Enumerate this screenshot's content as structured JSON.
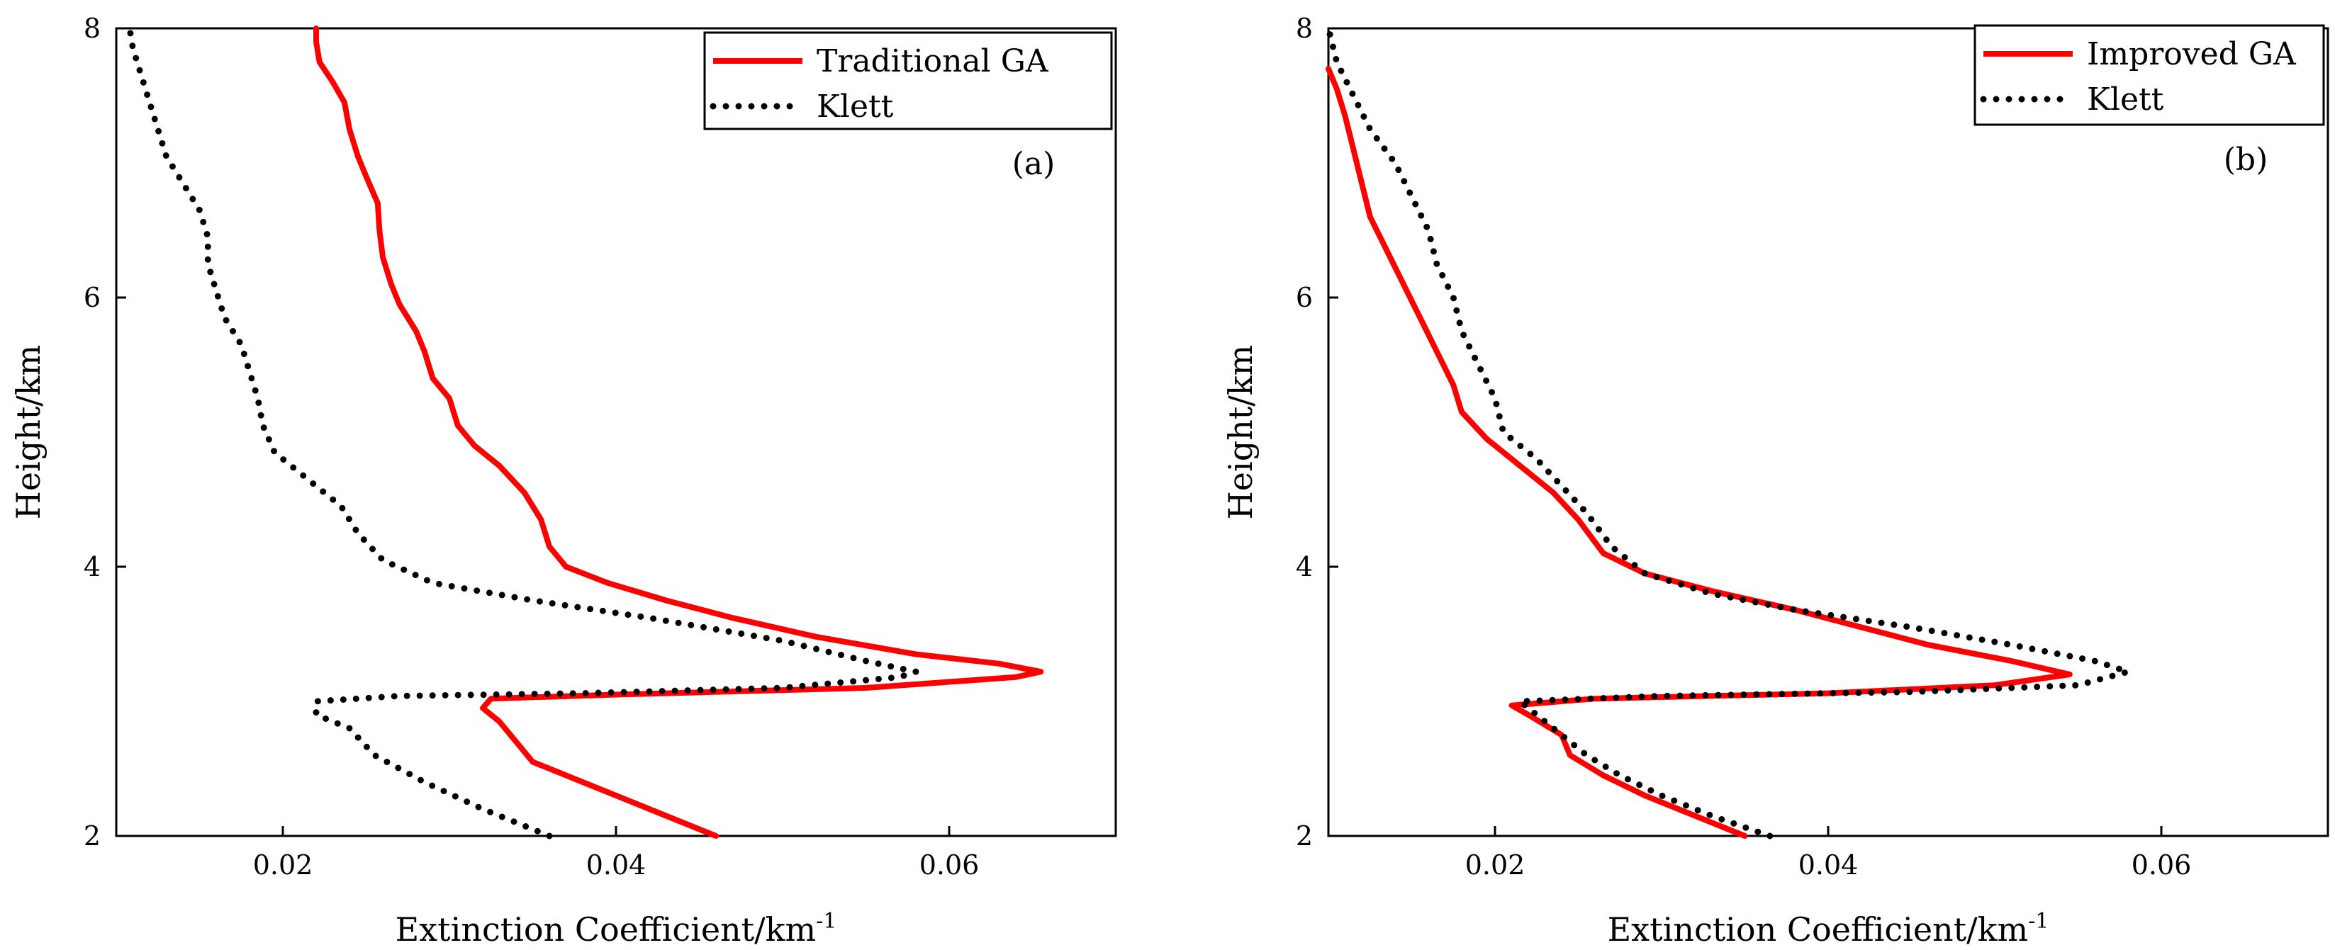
{
  "chart_data": [
    {
      "type": "line",
      "panel_label": "(a)",
      "xlabel": "Extinction Coefficient/km",
      "xlabel_superscript": "-1",
      "ylabel": "Height/km",
      "xlim": [
        0.01,
        0.07
      ],
      "ylim": [
        2,
        8
      ],
      "xticks": [
        0.02,
        0.04,
        0.06
      ],
      "xtick_labels": [
        "0.02",
        "0.04",
        "0.06"
      ],
      "yticks": [
        2,
        4,
        6,
        8
      ],
      "ytick_labels": [
        "2",
        "4",
        "6",
        "8"
      ],
      "legend_position": "top-right",
      "series": [
        {
          "name": "Traditional GA",
          "style": "solid",
          "color": "#ff0000",
          "points": [
            [
              0.046,
              2.0
            ],
            [
              0.042,
              2.2
            ],
            [
              0.038,
              2.4
            ],
            [
              0.035,
              2.55
            ],
            [
              0.034,
              2.7
            ],
            [
              0.033,
              2.85
            ],
            [
              0.032,
              2.95
            ],
            [
              0.0325,
              3.02
            ],
            [
              0.04,
              3.05
            ],
            [
              0.055,
              3.1
            ],
            [
              0.064,
              3.18
            ],
            [
              0.0655,
              3.22
            ],
            [
              0.063,
              3.28
            ],
            [
              0.058,
              3.35
            ],
            [
              0.052,
              3.48
            ],
            [
              0.047,
              3.62
            ],
            [
              0.043,
              3.75
            ],
            [
              0.0395,
              3.88
            ],
            [
              0.037,
              4.0
            ],
            [
              0.036,
              4.15
            ],
            [
              0.0355,
              4.35
            ],
            [
              0.0345,
              4.55
            ],
            [
              0.033,
              4.75
            ],
            [
              0.0315,
              4.9
            ],
            [
              0.0305,
              5.05
            ],
            [
              0.03,
              5.25
            ],
            [
              0.029,
              5.4
            ],
            [
              0.0285,
              5.6
            ],
            [
              0.028,
              5.75
            ],
            [
              0.027,
              5.95
            ],
            [
              0.0265,
              6.1
            ],
            [
              0.026,
              6.3
            ],
            [
              0.0258,
              6.5
            ],
            [
              0.0257,
              6.7
            ],
            [
              0.025,
              6.9
            ],
            [
              0.0245,
              7.05
            ],
            [
              0.024,
              7.25
            ],
            [
              0.0237,
              7.45
            ],
            [
              0.023,
              7.6
            ],
            [
              0.0222,
              7.75
            ],
            [
              0.022,
              7.9
            ],
            [
              0.022,
              8.0
            ]
          ]
        },
        {
          "name": "Klett",
          "style": "dotted",
          "color": "#000000",
          "points": [
            [
              0.036,
              2.0
            ],
            [
              0.032,
              2.2
            ],
            [
              0.0285,
              2.4
            ],
            [
              0.0255,
              2.6
            ],
            [
              0.024,
              2.8
            ],
            [
              0.022,
              2.9
            ],
            [
              0.022,
              3.0
            ],
            [
              0.027,
              3.04
            ],
            [
              0.038,
              3.06
            ],
            [
              0.05,
              3.1
            ],
            [
              0.057,
              3.18
            ],
            [
              0.058,
              3.22
            ],
            [
              0.055,
              3.3
            ],
            [
              0.05,
              3.45
            ],
            [
              0.042,
              3.62
            ],
            [
              0.035,
              3.75
            ],
            [
              0.029,
              3.88
            ],
            [
              0.026,
              4.05
            ],
            [
              0.0245,
              4.25
            ],
            [
              0.0235,
              4.45
            ],
            [
              0.0215,
              4.65
            ],
            [
              0.0195,
              4.85
            ],
            [
              0.0188,
              5.05
            ],
            [
              0.0185,
              5.25
            ],
            [
              0.018,
              5.45
            ],
            [
              0.0175,
              5.65
            ],
            [
              0.0165,
              5.85
            ],
            [
              0.016,
              6.05
            ],
            [
              0.0155,
              6.25
            ],
            [
              0.0155,
              6.45
            ],
            [
              0.015,
              6.65
            ],
            [
              0.014,
              6.85
            ],
            [
              0.013,
              7.05
            ],
            [
              0.0125,
              7.25
            ],
            [
              0.012,
              7.45
            ],
            [
              0.0115,
              7.65
            ],
            [
              0.011,
              7.85
            ],
            [
              0.0108,
              8.0
            ]
          ]
        }
      ]
    },
    {
      "type": "line",
      "panel_label": "(b)",
      "xlabel": "Extinction Coefficient/km",
      "xlabel_superscript": "-1",
      "ylabel": "Height/km",
      "xlim": [
        0.01,
        0.07
      ],
      "ylim": [
        2,
        8
      ],
      "xticks": [
        0.02,
        0.04,
        0.06
      ],
      "xtick_labels": [
        "0.02",
        "0.04",
        "0.06"
      ],
      "yticks": [
        2,
        4,
        6,
        8
      ],
      "ytick_labels": [
        "2",
        "4",
        "6",
        "8"
      ],
      "legend_position": "top-right",
      "series": [
        {
          "name": "Improved GA",
          "style": "solid",
          "color": "#ff0000",
          "points": [
            [
              0.035,
              2.0
            ],
            [
              0.032,
              2.15
            ],
            [
              0.029,
              2.3
            ],
            [
              0.0265,
              2.45
            ],
            [
              0.0245,
              2.6
            ],
            [
              0.024,
              2.75
            ],
            [
              0.022,
              2.9
            ],
            [
              0.021,
              2.97
            ],
            [
              0.026,
              3.02
            ],
            [
              0.04,
              3.06
            ],
            [
              0.05,
              3.12
            ],
            [
              0.0545,
              3.2
            ],
            [
              0.051,
              3.3
            ],
            [
              0.046,
              3.42
            ],
            [
              0.042,
              3.55
            ],
            [
              0.038,
              3.68
            ],
            [
              0.033,
              3.82
            ],
            [
              0.029,
              3.95
            ],
            [
              0.0265,
              4.1
            ],
            [
              0.025,
              4.35
            ],
            [
              0.0235,
              4.55
            ],
            [
              0.0215,
              4.75
            ],
            [
              0.0195,
              4.95
            ],
            [
              0.018,
              5.15
            ],
            [
              0.0175,
              5.35
            ],
            [
              0.0165,
              5.6
            ],
            [
              0.0155,
              5.85
            ],
            [
              0.0145,
              6.1
            ],
            [
              0.0135,
              6.35
            ],
            [
              0.0125,
              6.6
            ],
            [
              0.012,
              6.85
            ],
            [
              0.0115,
              7.1
            ],
            [
              0.011,
              7.35
            ],
            [
              0.0105,
              7.55
            ],
            [
              0.01,
              7.7
            ]
          ]
        },
        {
          "name": "Klett",
          "style": "dotted",
          "color": "#000000",
          "points": [
            [
              0.0365,
              2.0
            ],
            [
              0.033,
              2.15
            ],
            [
              0.03,
              2.3
            ],
            [
              0.0275,
              2.45
            ],
            [
              0.0255,
              2.6
            ],
            [
              0.024,
              2.75
            ],
            [
              0.0225,
              2.9
            ],
            [
              0.0215,
              3.0
            ],
            [
              0.03,
              3.04
            ],
            [
              0.045,
              3.07
            ],
            [
              0.055,
              3.12
            ],
            [
              0.058,
              3.22
            ],
            [
              0.056,
              3.3
            ],
            [
              0.051,
              3.42
            ],
            [
              0.045,
              3.55
            ],
            [
              0.038,
              3.68
            ],
            [
              0.033,
              3.8
            ],
            [
              0.029,
              3.95
            ],
            [
              0.027,
              4.15
            ],
            [
              0.0255,
              4.4
            ],
            [
              0.024,
              4.6
            ],
            [
              0.0225,
              4.8
            ],
            [
              0.0205,
              5.0
            ],
            [
              0.02,
              5.25
            ],
            [
              0.019,
              5.5
            ],
            [
              0.018,
              5.75
            ],
            [
              0.0175,
              6.0
            ],
            [
              0.0165,
              6.25
            ],
            [
              0.016,
              6.5
            ],
            [
              0.015,
              6.75
            ],
            [
              0.014,
              7.0
            ],
            [
              0.0125,
              7.25
            ],
            [
              0.0115,
              7.5
            ],
            [
              0.0105,
              7.75
            ],
            [
              0.01,
              8.0
            ]
          ]
        }
      ]
    }
  ]
}
